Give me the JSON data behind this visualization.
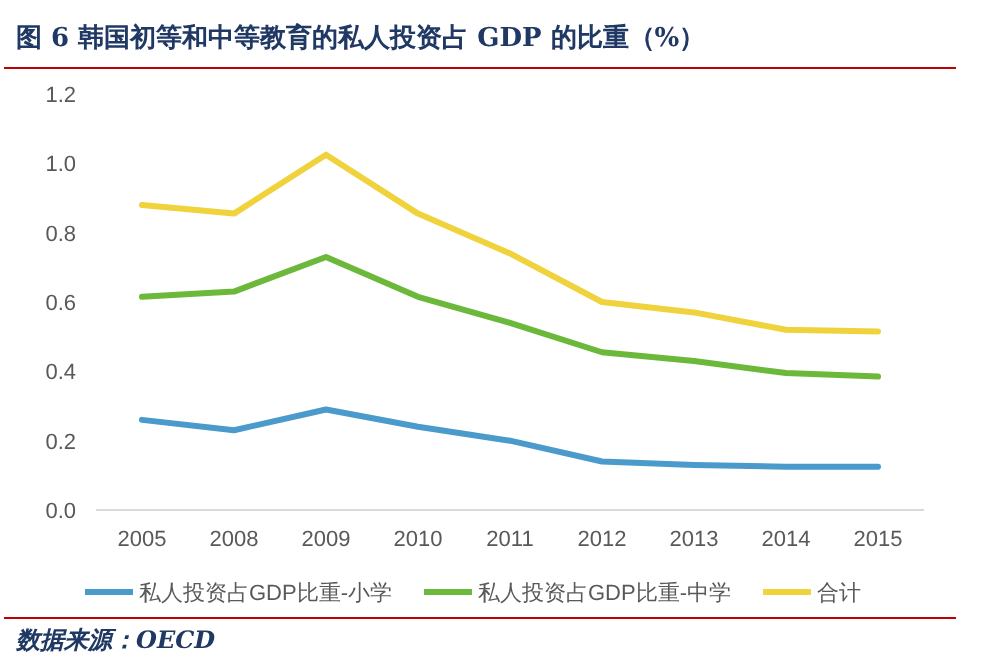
{
  "chart_data": {
    "type": "line",
    "title": "图 6 韩国初等和中等教育的私人投资占 GDP 的比重（%）",
    "categories": [
      "2005",
      "2008",
      "2009",
      "2010",
      "2011",
      "2012",
      "2013",
      "2014",
      "2015"
    ],
    "series": [
      {
        "name": "私人投资占GDP比重-小学",
        "color": "#4a9acb",
        "values": [
          0.26,
          0.23,
          0.29,
          0.24,
          0.2,
          0.14,
          0.13,
          0.125,
          0.125
        ]
      },
      {
        "name": "私人投资占GDP比重-中学",
        "color": "#6cb83a",
        "values": [
          0.615,
          0.63,
          0.73,
          0.615,
          0.54,
          0.455,
          0.43,
          0.395,
          0.385
        ]
      },
      {
        "name": "合计",
        "color": "#f0d23c",
        "values": [
          0.88,
          0.855,
          1.025,
          0.855,
          0.74,
          0.6,
          0.57,
          0.52,
          0.515
        ]
      }
    ],
    "ylim": [
      0,
      1.2
    ],
    "yticks": [
      {
        "value": 0,
        "label": "0.0"
      },
      {
        "value": 0.2,
        "label": "0.2"
      },
      {
        "value": 0.4,
        "label": "0.4"
      },
      {
        "value": 0.6,
        "label": "0.6"
      },
      {
        "value": 0.8,
        "label": "0.8"
      },
      {
        "value": 1.0,
        "label": "1.0"
      },
      {
        "value": 1.2,
        "label": "1.2"
      }
    ],
    "grid": false,
    "legend": "bottom",
    "marker": "none",
    "line_style": "solid",
    "annotations": [
      "数据来源：OECD"
    ]
  }
}
